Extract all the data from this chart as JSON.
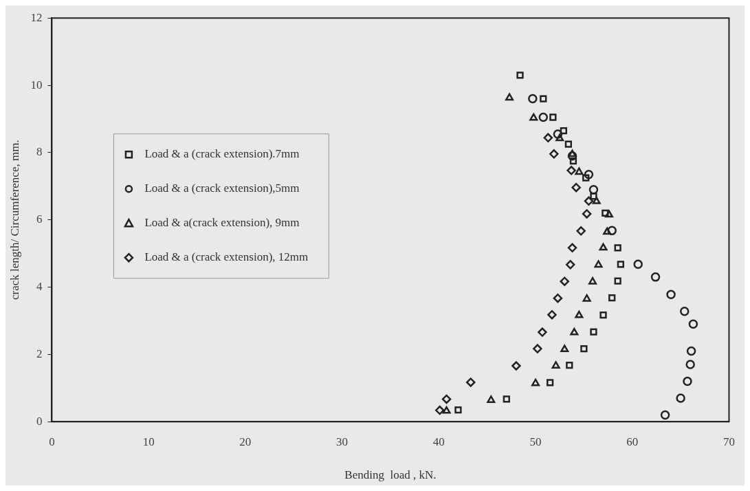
{
  "chart_data": {
    "type": "scatter",
    "xlabel": "Bending  load , kN.",
    "ylabel": "crack length/ Circumference, mm.",
    "xlim": [
      0,
      70
    ],
    "ylim": [
      0,
      12
    ],
    "xticks": [
      0,
      10,
      20,
      30,
      40,
      50,
      60,
      70
    ],
    "yticks": [
      0,
      2,
      4,
      6,
      8,
      10,
      12
    ],
    "grid": false,
    "legend": "left",
    "series": [
      {
        "name": "Load & a (crack extension).7mm",
        "color": "#222222",
        "marker": "square",
        "x": [
          42.0,
          47.0,
          51.5,
          53.5,
          55.0,
          56.0,
          57.0,
          57.9,
          58.5,
          58.8,
          58.5,
          57.2,
          56.0,
          55.2,
          53.9,
          53.4,
          52.9,
          51.8,
          50.8,
          48.4
        ],
        "values": [
          0.35,
          0.67,
          1.16,
          1.68,
          2.17,
          2.67,
          3.17,
          3.68,
          4.18,
          4.68,
          5.17,
          6.2,
          6.7,
          7.25,
          7.75,
          8.25,
          8.65,
          9.05,
          9.6,
          10.3
        ]
      },
      {
        "name": "Load & a (crack extension),5mm",
        "color": "#222222",
        "marker": "circle",
        "x": [
          63.4,
          65.0,
          65.7,
          66.0,
          66.1,
          66.3,
          65.4,
          64.0,
          62.4,
          60.6,
          57.9,
          null,
          56.0,
          55.5,
          53.8,
          52.3,
          50.8,
          49.7
        ],
        "values": [
          0.2,
          0.7,
          1.2,
          1.7,
          2.1,
          2.9,
          3.28,
          3.78,
          4.3,
          4.68,
          5.68,
          null,
          6.9,
          7.35,
          7.9,
          8.55,
          9.05,
          9.6
        ]
      },
      {
        "name": "Load & a(crack extension), 9mm",
        "color": "#222222",
        "marker": "triangle",
        "x": [
          40.8,
          45.4,
          50.0,
          52.1,
          53.0,
          54.0,
          54.5,
          55.3,
          55.9,
          56.5,
          57.0,
          57.4,
          57.6,
          56.3,
          54.5,
          53.8,
          52.5,
          49.8,
          47.3
        ],
        "values": [
          0.32,
          0.64,
          1.14,
          1.66,
          2.15,
          2.65,
          3.16,
          3.65,
          4.16,
          4.66,
          5.17,
          5.64,
          6.15,
          6.55,
          7.42,
          7.95,
          8.42,
          9.03,
          9.63
        ]
      },
      {
        "name": "Load & a (crack extension), 12mm",
        "color": "#222222",
        "marker": "diamond",
        "x": [
          40.1,
          40.8,
          43.3,
          48.0,
          50.2,
          50.7,
          51.7,
          52.3,
          53.0,
          53.6,
          53.8,
          54.7,
          55.3,
          55.5,
          54.2,
          53.7,
          51.9,
          51.3
        ],
        "values": [
          0.34,
          0.67,
          1.17,
          1.66,
          2.17,
          2.66,
          3.18,
          3.67,
          4.17,
          4.67,
          5.17,
          5.67,
          6.18,
          6.56,
          6.96,
          7.47,
          7.96,
          8.44
        ]
      }
    ]
  }
}
